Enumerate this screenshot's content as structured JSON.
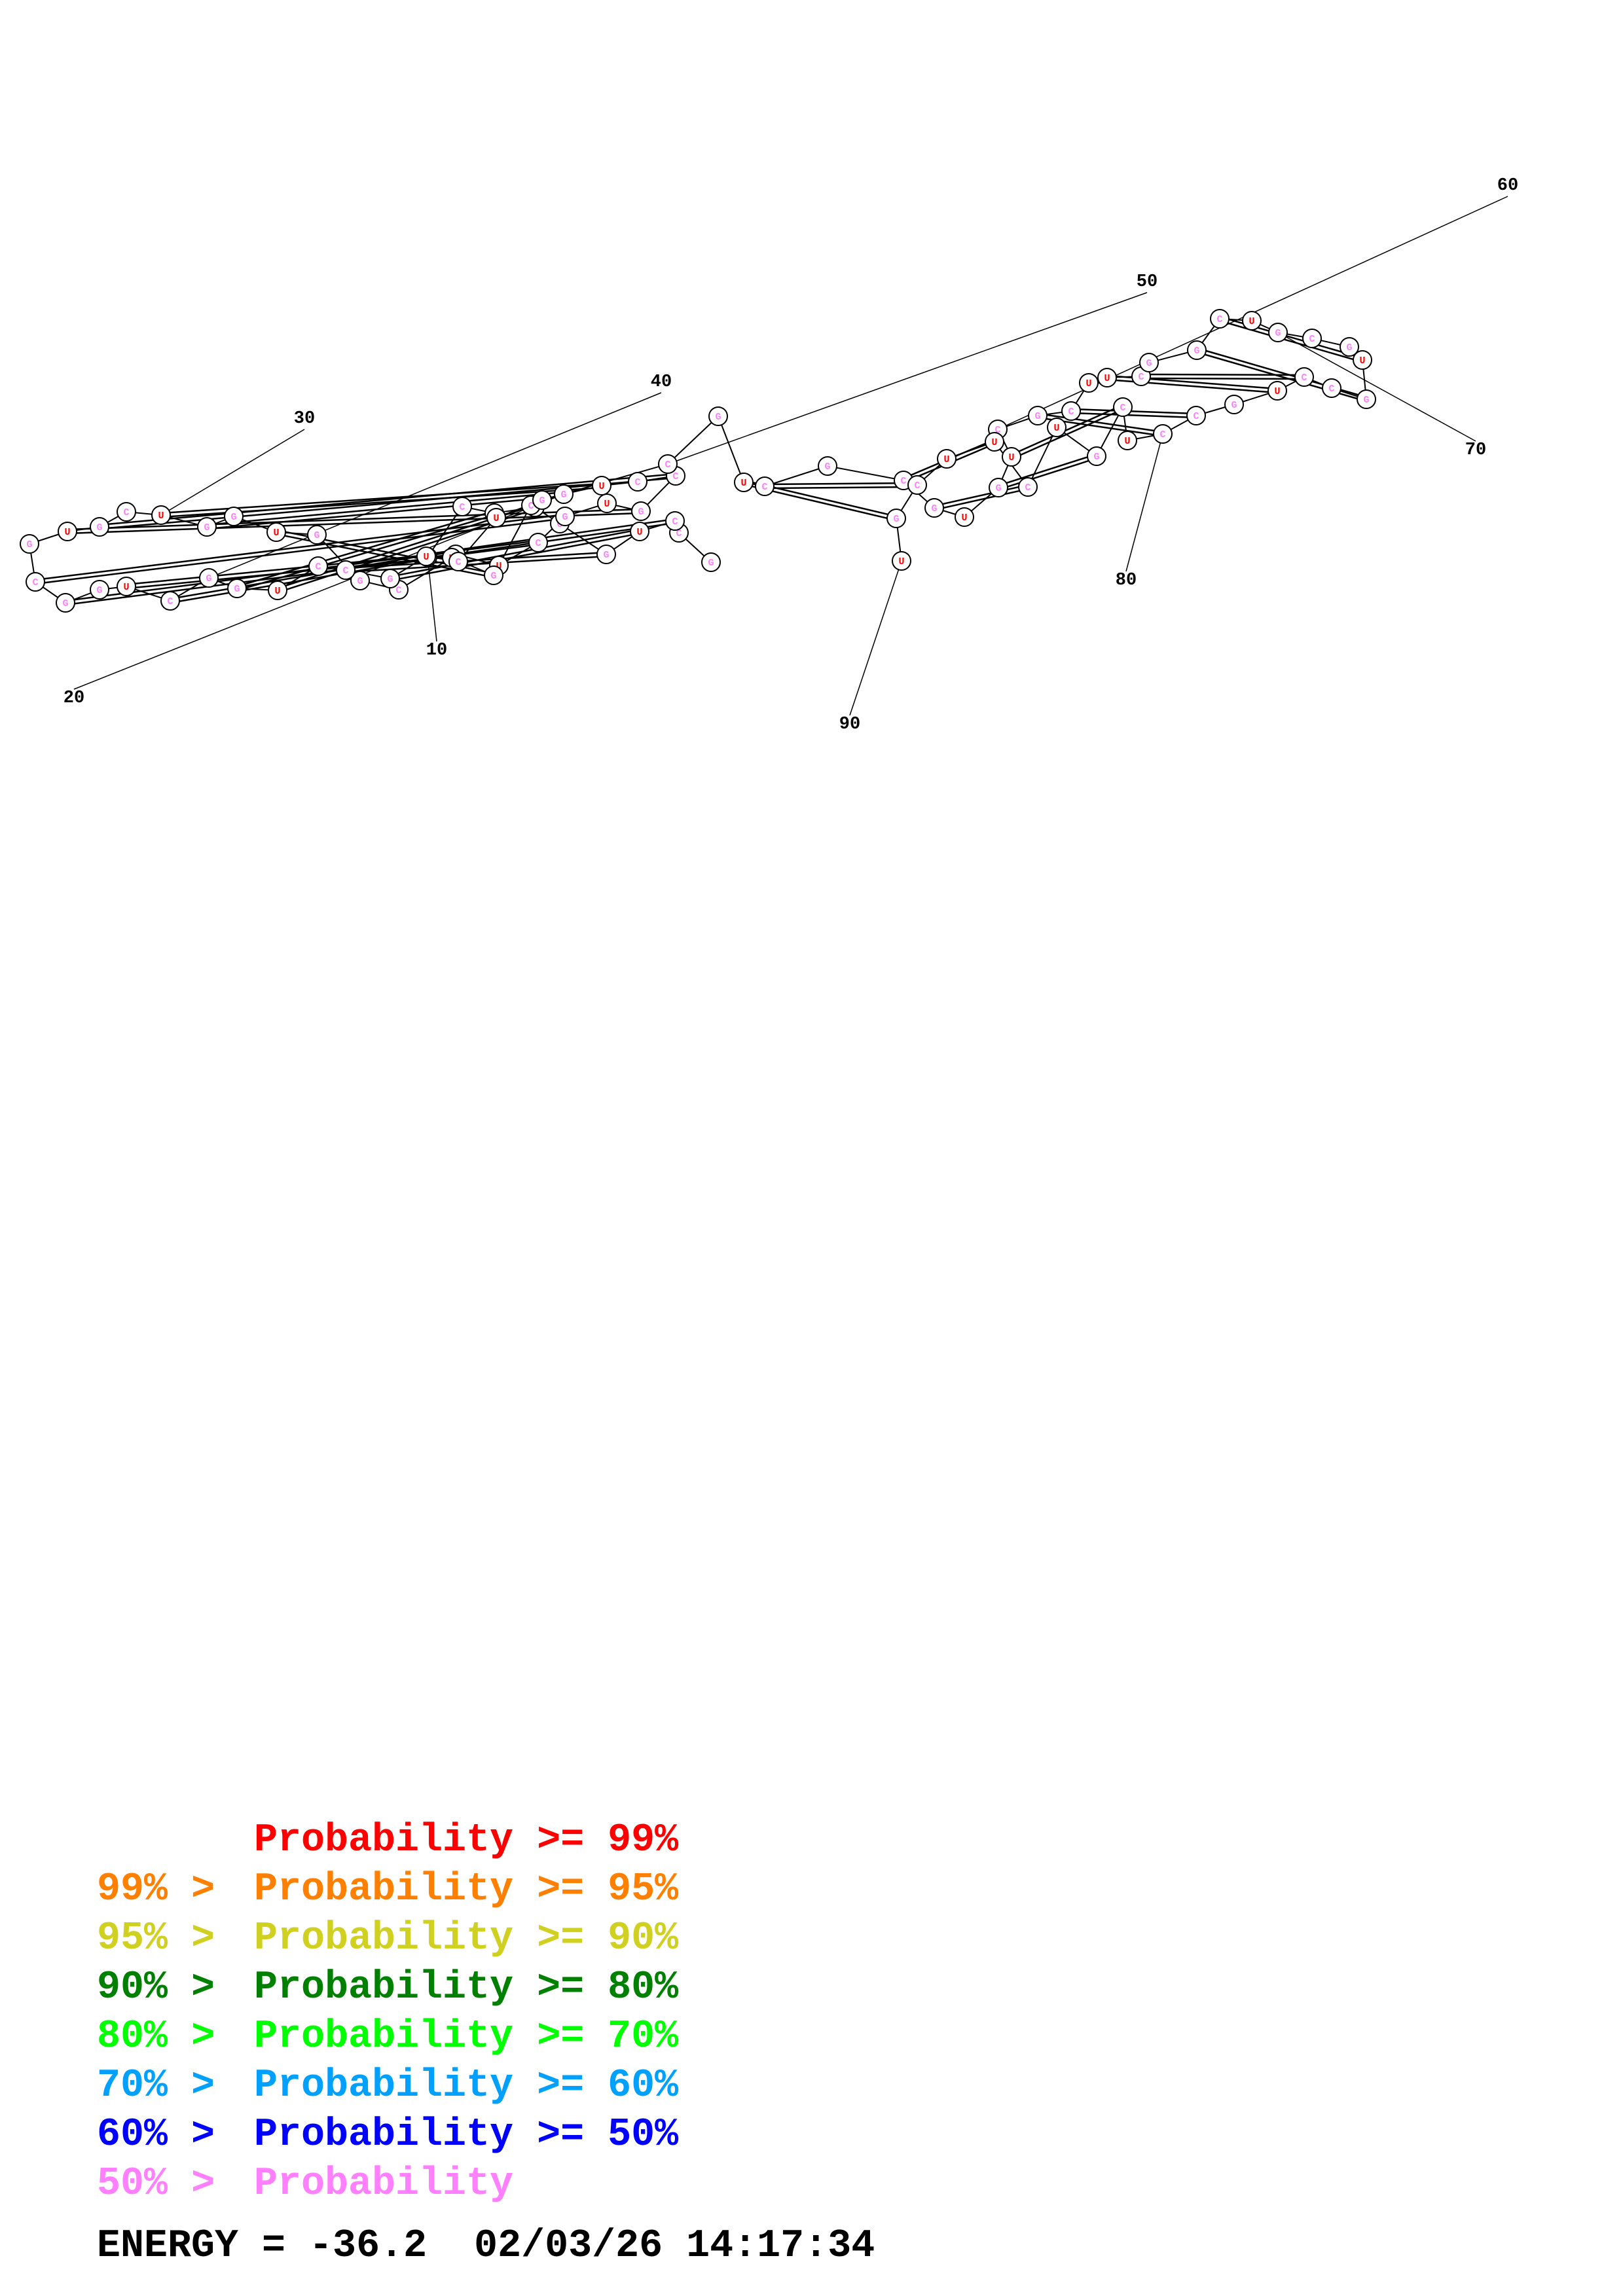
{
  "sequence": "GCCUGCGUCGGUCGUGCCUGCGUCGGUGGUCGUGCGGUCGGUCCGUCUGCGUCGCGUGUCGCUUCGGCUGCGUGCCUGCCUCGUCUUCGUUCG",
  "structure": {
    "position_labels": [
      "10",
      "20",
      "30",
      "40",
      "50",
      "60",
      "70",
      "80",
      "90"
    ],
    "nucleotide_color": "#ff80ff",
    "u_color": "#ff0000",
    "pair_color": "#000000"
  },
  "legend": {
    "rows": [
      {
        "prefix": "",
        "range": "Probability >= 99%",
        "color": "#ff0000"
      },
      {
        "prefix": "99% > ",
        "range": "Probability >= 95%",
        "color": "#ff8000"
      },
      {
        "prefix": "95% > ",
        "range": "Probability >= 90%",
        "color": "#d0d020"
      },
      {
        "prefix": "90% > ",
        "range": "Probability >= 80%",
        "color": "#008000"
      },
      {
        "prefix": "80% > ",
        "range": "Probability >= 70%",
        "color": "#00ff00"
      },
      {
        "prefix": "70% > ",
        "range": "Probability >= 60%",
        "color": "#00a0ff"
      },
      {
        "prefix": "60% > ",
        "range": "Probability >= 50%",
        "color": "#0000ff"
      },
      {
        "prefix": "50% > ",
        "range": "Probability",
        "color": "#ff80ff"
      }
    ]
  },
  "footer": {
    "energy": "ENERGY = -36.2",
    "timestamp": "02/03/26 14:17:34"
  }
}
